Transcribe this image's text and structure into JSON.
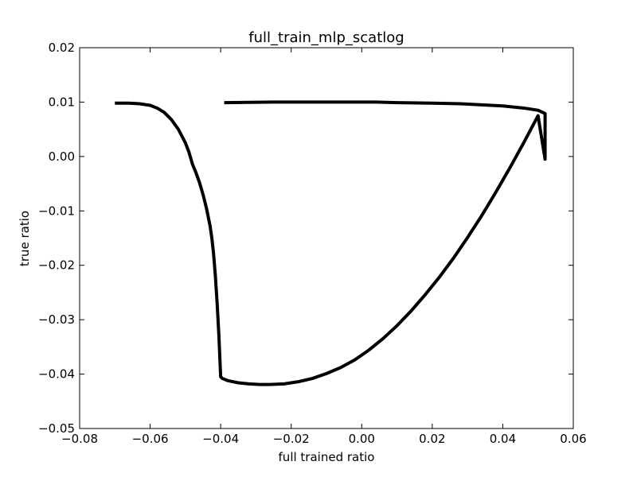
{
  "chart_data": {
    "type": "line",
    "title": "full_train_mlp_scatlog",
    "xlabel": "full trained ratio",
    "ylabel": "true ratio",
    "xlim": [
      -0.08,
      0.06
    ],
    "ylim": [
      -0.05,
      0.02
    ],
    "x_ticks": [
      -0.08,
      -0.06,
      -0.04,
      -0.02,
      0.0,
      0.02,
      0.04,
      0.06
    ],
    "x_tick_labels": [
      "−0.08",
      "−0.06",
      "−0.04",
      "−0.02",
      "0.00",
      "0.02",
      "0.04",
      "0.06"
    ],
    "y_ticks": [
      0.02,
      0.01,
      0.0,
      -0.01,
      -0.02,
      -0.03,
      -0.04,
      -0.05
    ],
    "y_tick_labels": [
      "0.02",
      "0.01",
      "0.00",
      "−0.01",
      "−0.02",
      "−0.03",
      "−0.04",
      "−0.05"
    ],
    "grid": false,
    "line_color": "#000000",
    "series": [
      {
        "x": [
          -0.07,
          -0.066,
          -0.063,
          -0.06,
          -0.058,
          -0.056,
          -0.054,
          -0.052,
          -0.05,
          -0.049,
          -0.048,
          -0.047,
          -0.046,
          -0.045,
          -0.044,
          -0.043,
          -0.0425,
          -0.042,
          -0.0415,
          -0.041,
          -0.0405,
          -0.04,
          -0.0395,
          -0.038,
          -0.035,
          -0.032,
          -0.029,
          -0.026,
          -0.022,
          -0.018,
          -0.014,
          -0.01,
          -0.006,
          -0.002,
          0.002,
          0.006,
          0.01,
          0.014,
          0.018,
          0.022,
          0.026,
          0.03,
          0.034,
          0.038,
          0.042,
          0.046,
          0.05,
          0.052,
          0.052,
          0.05,
          0.046,
          0.04,
          0.034,
          0.028,
          0.02,
          0.01,
          0.004,
          -0.01,
          -0.025,
          -0.039
        ],
        "y": [
          0.0098,
          0.0098,
          0.0097,
          0.0094,
          0.0089,
          0.0081,
          0.0068,
          0.005,
          0.0025,
          0.0008,
          -0.0014,
          -0.003,
          -0.0048,
          -0.007,
          -0.0096,
          -0.0128,
          -0.015,
          -0.018,
          -0.022,
          -0.027,
          -0.033,
          -0.0405,
          -0.0408,
          -0.0412,
          -0.0416,
          -0.0418,
          -0.0419,
          -0.0419,
          -0.0418,
          -0.0414,
          -0.0408,
          -0.0399,
          -0.0388,
          -0.0374,
          -0.0356,
          -0.0335,
          -0.0311,
          -0.0284,
          -0.0254,
          -0.0222,
          -0.0187,
          -0.0149,
          -0.0109,
          -0.0066,
          -0.0021,
          0.0026,
          0.0075,
          -0.0005,
          0.0079,
          0.0085,
          0.0089,
          0.0093,
          0.0095,
          0.0097,
          0.0098,
          0.0099,
          0.01,
          0.01,
          0.01,
          0.0099
        ]
      }
    ]
  }
}
